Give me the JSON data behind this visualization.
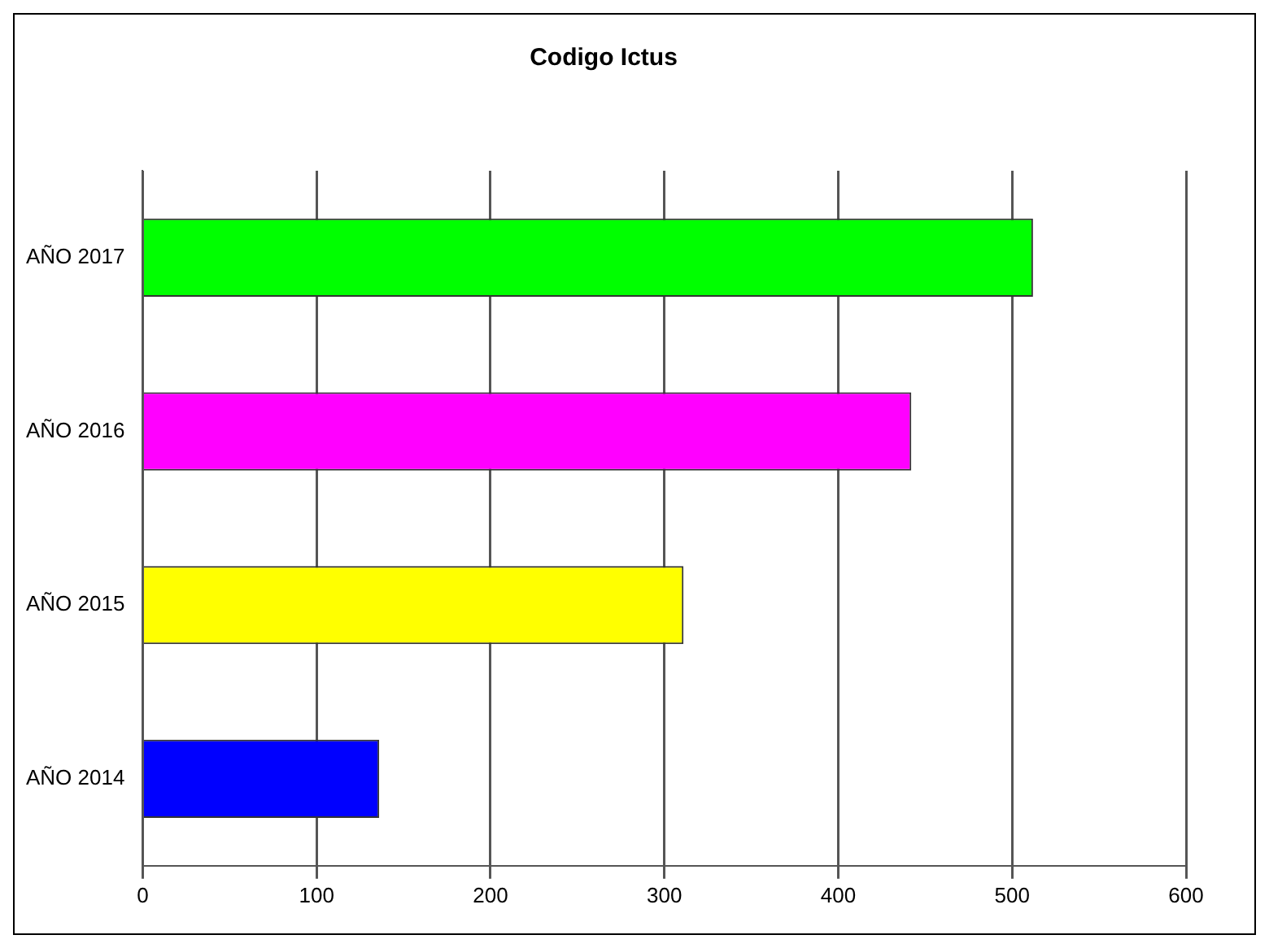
{
  "chart_data": {
    "type": "bar",
    "orientation": "horizontal",
    "title": "Codigo Ictus",
    "categories": [
      "AÑO 2017",
      "AÑO 2016",
      "AÑO 2015",
      "AÑO 2014"
    ],
    "values": [
      512,
      442,
      311,
      136
    ],
    "colors": [
      "#00ff00",
      "#ff00ff",
      "#ffff00",
      "#0000ff"
    ],
    "xlim": [
      0,
      600
    ],
    "xticks": [
      0,
      100,
      200,
      300,
      400,
      500,
      600
    ],
    "grid": "x",
    "legend": false
  }
}
